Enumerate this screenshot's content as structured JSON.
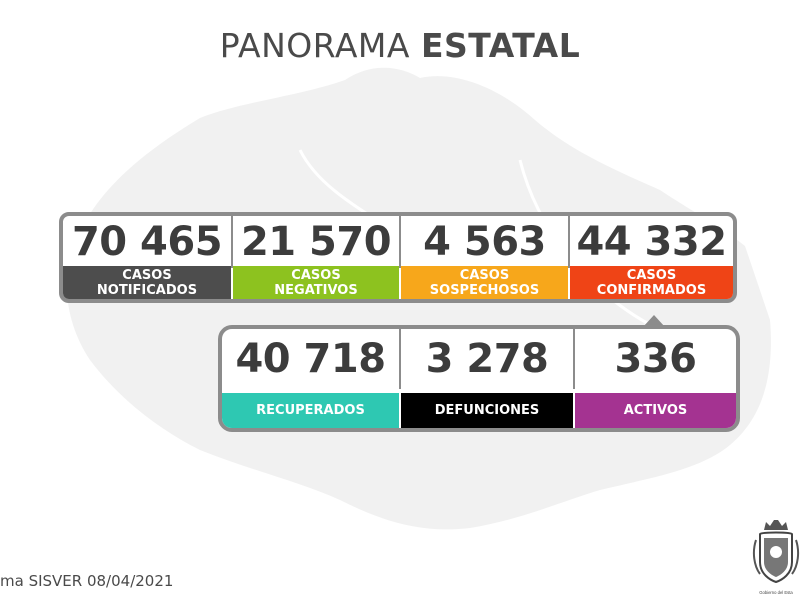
{
  "title": {
    "light": "PANORAMA",
    "bold": "ESTATAL"
  },
  "top_row": [
    {
      "value": "70 465",
      "label_line1": "CASOS",
      "label_line2": "NOTIFICADOS",
      "color": "#4d4d4d"
    },
    {
      "value": "21 570",
      "label_line1": "CASOS",
      "label_line2": "NEGATIVOS",
      "color": "#8dc21f"
    },
    {
      "value": "4 563",
      "label_line1": "CASOS",
      "label_line2": "SOSPECHOSOS",
      "color": "#f7a71b"
    },
    {
      "value": "44 332",
      "label_line1": "CASOS",
      "label_line2": "CONFIRMADOS",
      "color": "#ef4416"
    }
  ],
  "bottom_row": [
    {
      "value": "40 718",
      "label": "RECUPERADOS",
      "color": "#2ec8b2"
    },
    {
      "value": "3 278",
      "label": "DEFUNCIONES",
      "color": "#000000"
    },
    {
      "value": "336",
      "label": "ACTIVOS",
      "color": "#a43391"
    }
  ],
  "footer": {
    "source": "ma SISVER 08/04/2021",
    "seal_caption": "Gobierno del Esta"
  },
  "colors": {
    "border": "#8c8c8c",
    "text_dark": "#3c3c3c",
    "map": "#f1f1f1"
  }
}
